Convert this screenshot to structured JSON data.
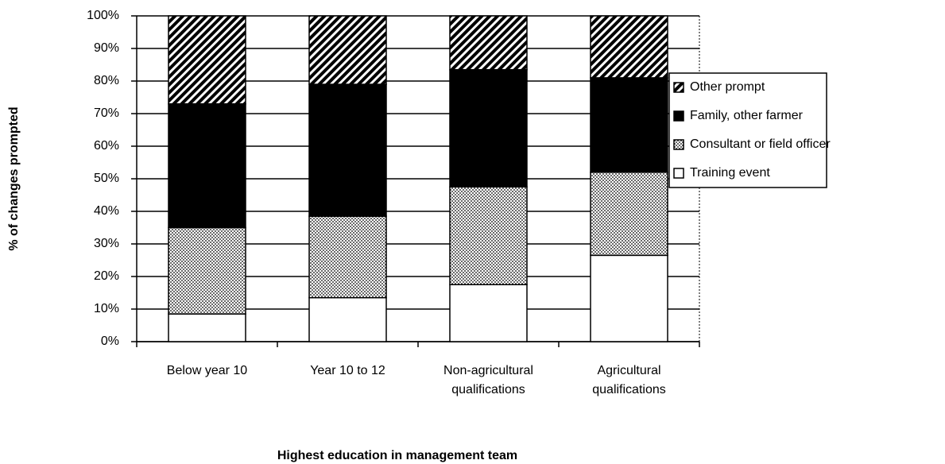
{
  "chart_data": {
    "type": "stacked_bar",
    "x_label": "Highest education in management team",
    "y_label": "% of changes prompted",
    "categories": [
      "Below year 10",
      "Year 10 to 12",
      "Non-agricultural qualifications",
      "Agricultural qualifications"
    ],
    "series": [
      {
        "name": "Training event",
        "color": "#ffffff",
        "pattern": "solid",
        "values": [
          8.5,
          13.5,
          17.5,
          26.5
        ]
      },
      {
        "name": "Consultant or field officer",
        "color": "#d0d0d0",
        "pattern": "dots",
        "values": [
          26.5,
          25,
          30,
          25.5
        ]
      },
      {
        "name": "Family, other farmer",
        "color": "#000000",
        "pattern": "solid",
        "values": [
          38,
          40.5,
          36,
          29
        ]
      },
      {
        "name": "Other prompt",
        "color": "#000000",
        "pattern": "diagonal",
        "values": [
          27,
          21,
          16.5,
          19
        ]
      }
    ],
    "ylim": [
      0,
      100
    ],
    "yticks": [
      {
        "value": 0,
        "label": "0%"
      },
      {
        "value": 10,
        "label": "10%"
      },
      {
        "value": 20,
        "label": "20%"
      },
      {
        "value": 30,
        "label": "30%"
      },
      {
        "value": 40,
        "label": "40%"
      },
      {
        "value": 50,
        "label": "50%"
      },
      {
        "value": 60,
        "label": "60%"
      },
      {
        "value": 70,
        "label": "70%"
      },
      {
        "value": 80,
        "label": "80%"
      },
      {
        "value": 90,
        "label": "90%"
      },
      {
        "value": 100,
        "label": "100%"
      }
    ],
    "grid": true,
    "legend": "right"
  }
}
